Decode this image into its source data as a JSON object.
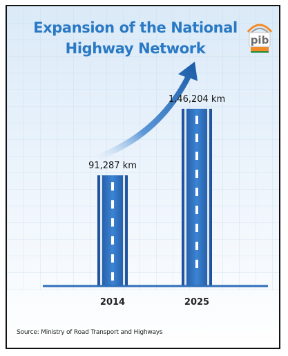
{
  "title_line1": "Expansion of the National",
  "title_line2": "Highway Network",
  "logo_text": "pib",
  "source": "Source: Ministry of Road Transport and Highways",
  "colors": {
    "title": "#2a79c4",
    "bar": "#2f73c2",
    "bar_dark": "#1a3e7a",
    "axis": "#2e6fb8",
    "arrow": "#1e5ea8"
  },
  "chart_data": {
    "type": "bar",
    "categories": [
      "2014",
      "2025"
    ],
    "values": [
      91287,
      146204
    ],
    "data_labels": [
      "91,287 km",
      "1,46,204 km"
    ],
    "title": "Expansion of the National Highway Network",
    "xlabel": "",
    "ylabel": "",
    "ylim": [
      0,
      160000
    ],
    "grid": true,
    "legend": "none"
  }
}
